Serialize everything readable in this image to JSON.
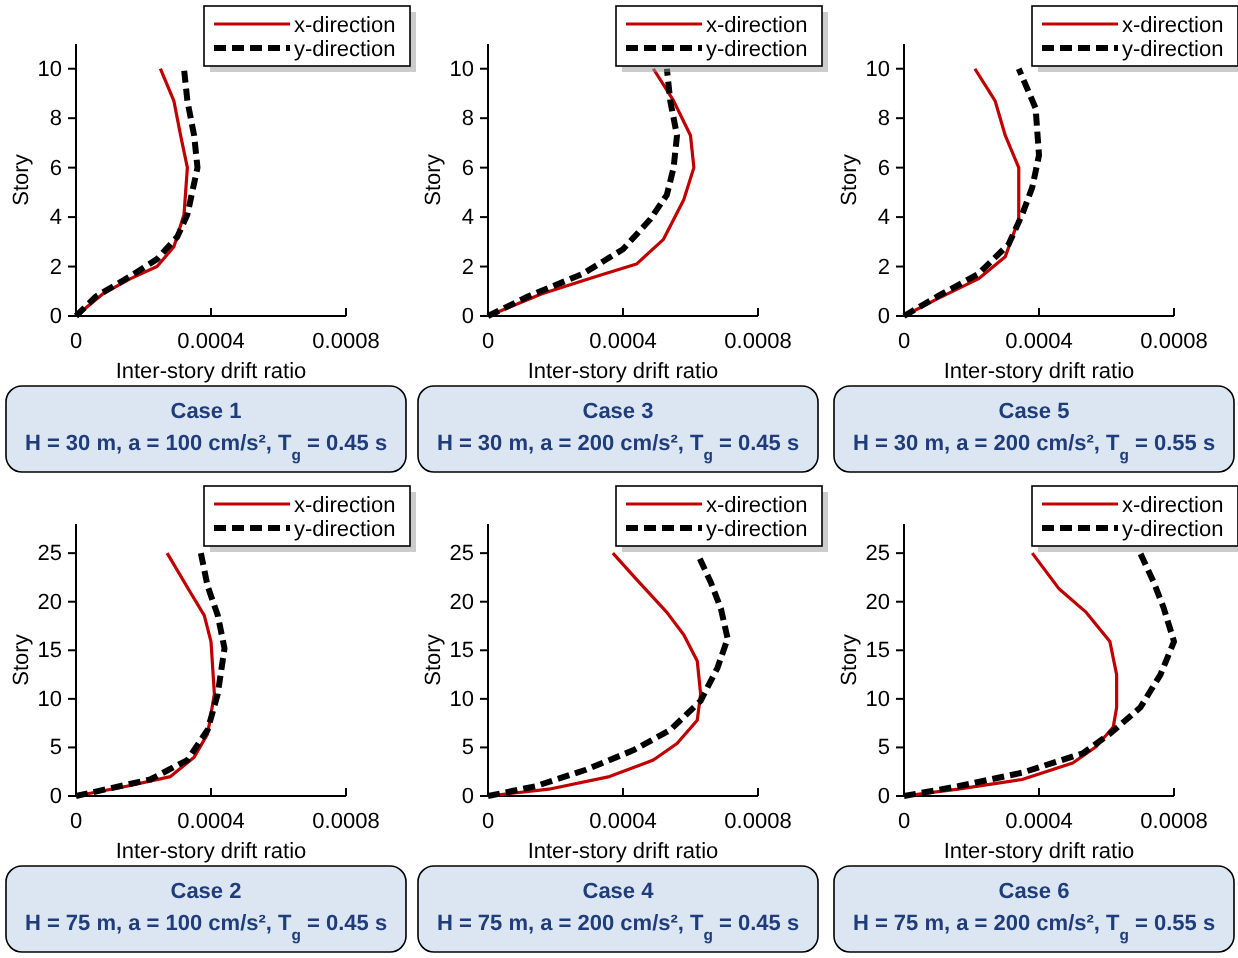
{
  "chart_data": [
    {
      "type": "line",
      "xlabel": "Inter-story drift ratio",
      "ylabel": "Story",
      "xlim": [
        0,
        0.0008
      ],
      "xticks": [
        0,
        0.0004,
        0.0008
      ],
      "ylim": [
        0,
        11
      ],
      "yticks": [
        0,
        2,
        4,
        6,
        8,
        10
      ],
      "legend": "top right",
      "annotations": [
        "Case 1",
        "H = 30 m, a = 100 cm/s², T$_{g}$ = 0.45 s"
      ],
      "series": [
        {
          "name": "x-direction",
          "color": "#c00000",
          "line_style": "solid",
          "x": [
            0,
            8e-05,
            0.00016,
            0.00024,
            0.00029,
            0.00032,
            0.00033,
            0.00031,
            0.00029,
            0.00025
          ],
          "values": [
            0,
            0.9,
            1.5,
            2,
            2.8,
            4.1,
            6,
            7.3,
            8.7,
            10
          ]
        },
        {
          "name": "y-direction",
          "color": "#000000",
          "line_style": "dashed",
          "x": [
            0,
            6e-05,
            0.00016,
            0.00024,
            0.0003,
            0.00033,
            0.00036,
            0.00035,
            0.00033,
            0.00032
          ],
          "values": [
            0,
            0.8,
            1.6,
            2.3,
            3.2,
            4.1,
            6,
            7.3,
            8.7,
            10
          ]
        }
      ]
    },
    {
      "type": "line",
      "xlabel": "Inter-story drift ratio",
      "ylabel": "Story",
      "xlim": [
        0,
        0.0008
      ],
      "xticks": [
        0,
        0.0004,
        0.0008
      ],
      "ylim": [
        0,
        11
      ],
      "yticks": [
        0,
        2,
        4,
        6,
        8,
        10
      ],
      "legend": "top right",
      "annotations": [
        "Case 3",
        "H = 30 m, a = 200 cm/s², T$_{g}$ = 0.45 s"
      ],
      "series": [
        {
          "name": "x-direction",
          "color": "#c00000",
          "line_style": "solid",
          "x": [
            0,
            0.00016,
            0.00032,
            0.00044,
            0.00052,
            0.00058,
            0.00061,
            0.0006,
            0.00055,
            0.00049
          ],
          "values": [
            0,
            0.9,
            1.6,
            2.1,
            3.1,
            4.7,
            6,
            7.3,
            8.7,
            10
          ]
        },
        {
          "name": "y-direction",
          "color": "#000000",
          "line_style": "dashed",
          "x": [
            0,
            0.00012,
            0.00028,
            0.0004,
            0.00048,
            0.00053,
            0.00055,
            0.00056,
            0.00054,
            0.00053
          ],
          "values": [
            0,
            0.8,
            1.7,
            2.7,
            3.9,
            4.9,
            6,
            7.3,
            8.7,
            10
          ]
        }
      ]
    },
    {
      "type": "line",
      "xlabel": "Inter-story drift ratio",
      "ylabel": "Story",
      "xlim": [
        0,
        0.0008
      ],
      "xticks": [
        0,
        0.0004,
        0.0008
      ],
      "ylim": [
        0,
        11
      ],
      "yticks": [
        0,
        2,
        4,
        6,
        8,
        10
      ],
      "legend": "top right",
      "annotations": [
        "Case 5",
        "H = 30 m, a = 200 cm/s², T$_{g}$ = 0.55 s"
      ],
      "series": [
        {
          "name": "x-direction",
          "color": "#c00000",
          "line_style": "solid",
          "x": [
            0,
            0.0001,
            0.00022,
            0.0003,
            0.00034,
            0.00034,
            0.0003,
            0.00027,
            0.00021
          ],
          "values": [
            0,
            0.7,
            1.5,
            2.4,
            3.9,
            6,
            7.3,
            8.7,
            10
          ]
        },
        {
          "name": "y-direction",
          "color": "#000000",
          "line_style": "dashed",
          "x": [
            0,
            0.0001,
            0.00022,
            0.00031,
            0.00035,
            0.00038,
            0.0004,
            0.00039,
            0.00034
          ],
          "values": [
            0,
            0.8,
            1.7,
            2.9,
            4.1,
            5.2,
            6.5,
            8.4,
            10
          ]
        }
      ]
    },
    {
      "type": "line",
      "xlabel": "Inter-story drift ratio",
      "ylabel": "Story",
      "xlim": [
        0,
        0.0008
      ],
      "xticks": [
        0,
        0.0004,
        0.0008
      ],
      "ylim": [
        0,
        28
      ],
      "yticks": [
        0,
        5,
        10,
        15,
        20,
        25
      ],
      "legend": "top right",
      "annotations": [
        "Case 2",
        "H = 75 m, a = 100 cm/s², T$_{g}$ = 0.45 s"
      ],
      "series": [
        {
          "name": "x-direction",
          "color": "#c00000",
          "line_style": "solid",
          "x": [
            0,
            0.00015,
            0.00028,
            0.00035,
            0.00039,
            0.00041,
            0.0004,
            0.00038,
            0.00034,
            0.00027
          ],
          "values": [
            0,
            1,
            2,
            4,
            6.4,
            10.5,
            15.9,
            18.6,
            20.9,
            25
          ]
        },
        {
          "name": "y-direction",
          "color": "#000000",
          "line_style": "dashed",
          "x": [
            0,
            9e-05,
            0.00022,
            0.00033,
            0.00039,
            0.00042,
            0.00044,
            0.00042,
            0.00039,
            0.00037
          ],
          "values": [
            0,
            0.7,
            1.7,
            3.7,
            6.8,
            10.5,
            15.2,
            18.6,
            21.6,
            25
          ]
        }
      ]
    },
    {
      "type": "line",
      "xlabel": "Inter-story drift ratio",
      "ylabel": "Story",
      "xlim": [
        0,
        0.0008
      ],
      "xticks": [
        0,
        0.0004,
        0.0008
      ],
      "ylim": [
        0,
        28
      ],
      "yticks": [
        0,
        5,
        10,
        15,
        20,
        25
      ],
      "legend": "top right",
      "annotations": [
        "Case 4",
        "H = 75 m, a = 200 cm/s², T$_{g}$ = 0.45 s"
      ],
      "series": [
        {
          "name": "x-direction",
          "color": "#c00000",
          "line_style": "solid",
          "x": [
            0,
            0.00018,
            0.00036,
            0.00049,
            0.00056,
            0.00062,
            0.00063,
            0.00062,
            0.00058,
            0.00053,
            0.00044,
            0.00037
          ],
          "values": [
            0,
            0.7,
            2,
            3.7,
            5.4,
            7.8,
            10.5,
            13.9,
            16.6,
            18.9,
            22.3,
            25
          ]
        },
        {
          "name": "y-direction",
          "color": "#000000",
          "line_style": "dashed",
          "x": [
            0,
            0.00014,
            0.00029,
            0.00043,
            0.00054,
            0.00063,
            0.00068,
            0.00071,
            0.00069,
            0.00066,
            0.00062
          ],
          "values": [
            0,
            1,
            2.7,
            4.7,
            6.8,
            9.8,
            13.2,
            16.2,
            19.3,
            22,
            25
          ]
        }
      ]
    },
    {
      "type": "line",
      "xlabel": "Inter-story drift ratio",
      "ylabel": "Story",
      "xlim": [
        0,
        0.0008
      ],
      "xticks": [
        0,
        0.0004,
        0.0008
      ],
      "ylim": [
        0,
        28
      ],
      "yticks": [
        0,
        5,
        10,
        15,
        20,
        25
      ],
      "legend": "top right",
      "annotations": [
        "Case 6",
        "H = 75 m, a = 200 cm/s², T$_{g}$ = 0.55 s"
      ],
      "series": [
        {
          "name": "x-direction",
          "color": "#c00000",
          "line_style": "solid",
          "x": [
            0,
            0.00016,
            0.00035,
            0.0005,
            0.00057,
            0.00062,
            0.00063,
            0.00063,
            0.00061,
            0.00054,
            0.00046,
            0.00038
          ],
          "values": [
            0,
            0.7,
            1.7,
            3.4,
            5.1,
            7.1,
            9.1,
            12.5,
            15.9,
            18.9,
            21.3,
            25
          ]
        },
        {
          "name": "y-direction",
          "color": "#000000",
          "line_style": "dashed",
          "x": [
            0,
            0.00016,
            0.00035,
            0.00053,
            0.00061,
            0.0007,
            0.00076,
            0.0008,
            0.00077,
            0.00074,
            0.0007
          ],
          "values": [
            0,
            1,
            2.4,
            4.4,
            6.4,
            9.1,
            12.5,
            15.9,
            19.3,
            22,
            25
          ]
        }
      ]
    }
  ]
}
